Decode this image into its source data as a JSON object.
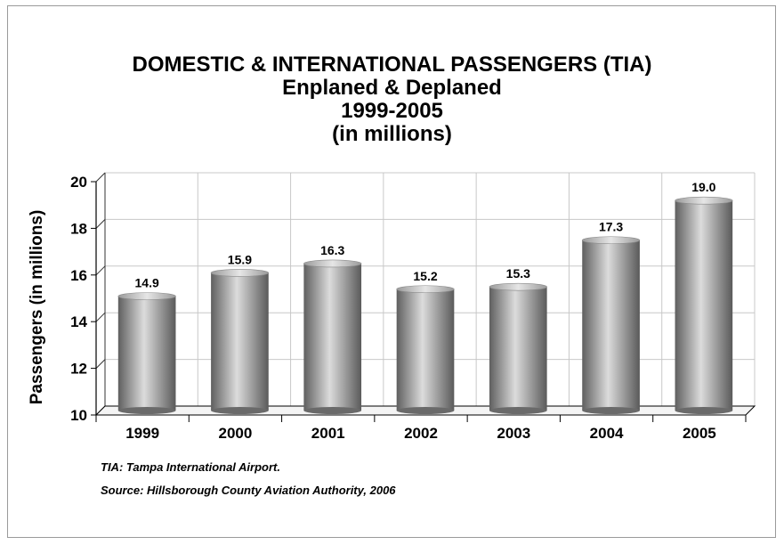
{
  "chart_data": {
    "type": "bar",
    "title": "DOMESTIC & INTERNATIONAL PASSENGERS (TIA)",
    "subtitle_lines": [
      "Enplaned & Deplaned",
      "1999-2005",
      "(in millions)"
    ],
    "xlabel": "",
    "ylabel": "Passengers (in millions)",
    "categories": [
      "1999",
      "2000",
      "2001",
      "2002",
      "2003",
      "2004",
      "2005"
    ],
    "values": [
      14.9,
      15.9,
      16.3,
      15.2,
      15.3,
      17.3,
      19.0
    ],
    "value_labels": [
      "14.9",
      "15.9",
      "16.3",
      "15.2",
      "15.3",
      "17.3",
      "19.0"
    ],
    "ylim": [
      10,
      20
    ],
    "yticks": [
      10,
      12,
      14,
      16,
      18,
      20
    ],
    "grid": true,
    "legend": "none",
    "bar_style": "3d-cylinder",
    "colors": {
      "bar_dark": "#5f5f5f",
      "bar_light": "#dcdcdc",
      "grid": "#c8c8c8"
    }
  },
  "notes": {
    "abbreviation": "TIA:  Tampa International Airport.",
    "source": "Source:  Hillsborough County Aviation Authority, 2006"
  }
}
